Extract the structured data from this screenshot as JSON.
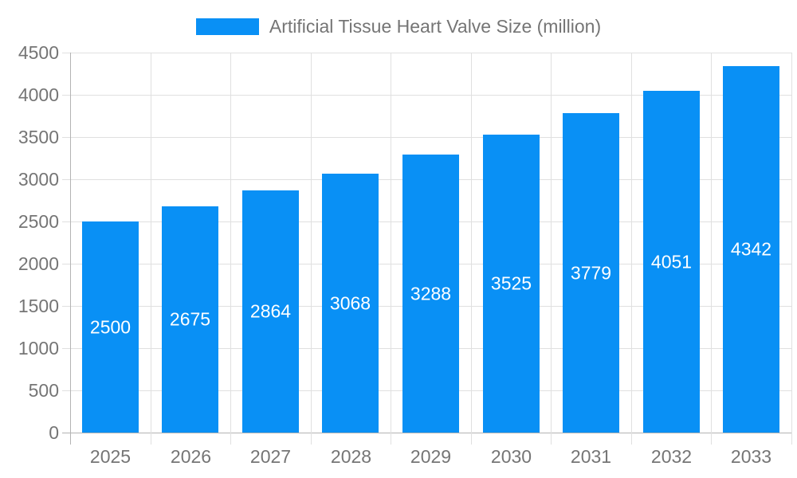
{
  "legend": {
    "label": "Artificial Tissue Heart Valve Size (million)"
  },
  "chart_data": {
    "type": "bar",
    "title": "Artificial Tissue Heart Valve Size (million)",
    "categories": [
      "2025",
      "2026",
      "2027",
      "2028",
      "2029",
      "2030",
      "2031",
      "2032",
      "2033"
    ],
    "values": [
      2500,
      2675,
      2864,
      3068,
      3288,
      3525,
      3779,
      4051,
      4342
    ],
    "xlabel": "",
    "ylabel": "",
    "ylim": [
      0,
      4500
    ],
    "ytick_step": 500,
    "yticks": [
      0,
      500,
      1000,
      1500,
      2000,
      2500,
      3000,
      3500,
      4000,
      4500
    ],
    "grid": true,
    "legend_position": "top",
    "bar_labels_shown": true,
    "colors": {
      "bar": "#0990f5",
      "bar_label_text": "#ffffff",
      "axis_text": "#757575",
      "legend_text": "#757575",
      "gridline": "#e0e0e0",
      "axis_line": "#b3b3b3",
      "background": "#ffffff"
    }
  }
}
